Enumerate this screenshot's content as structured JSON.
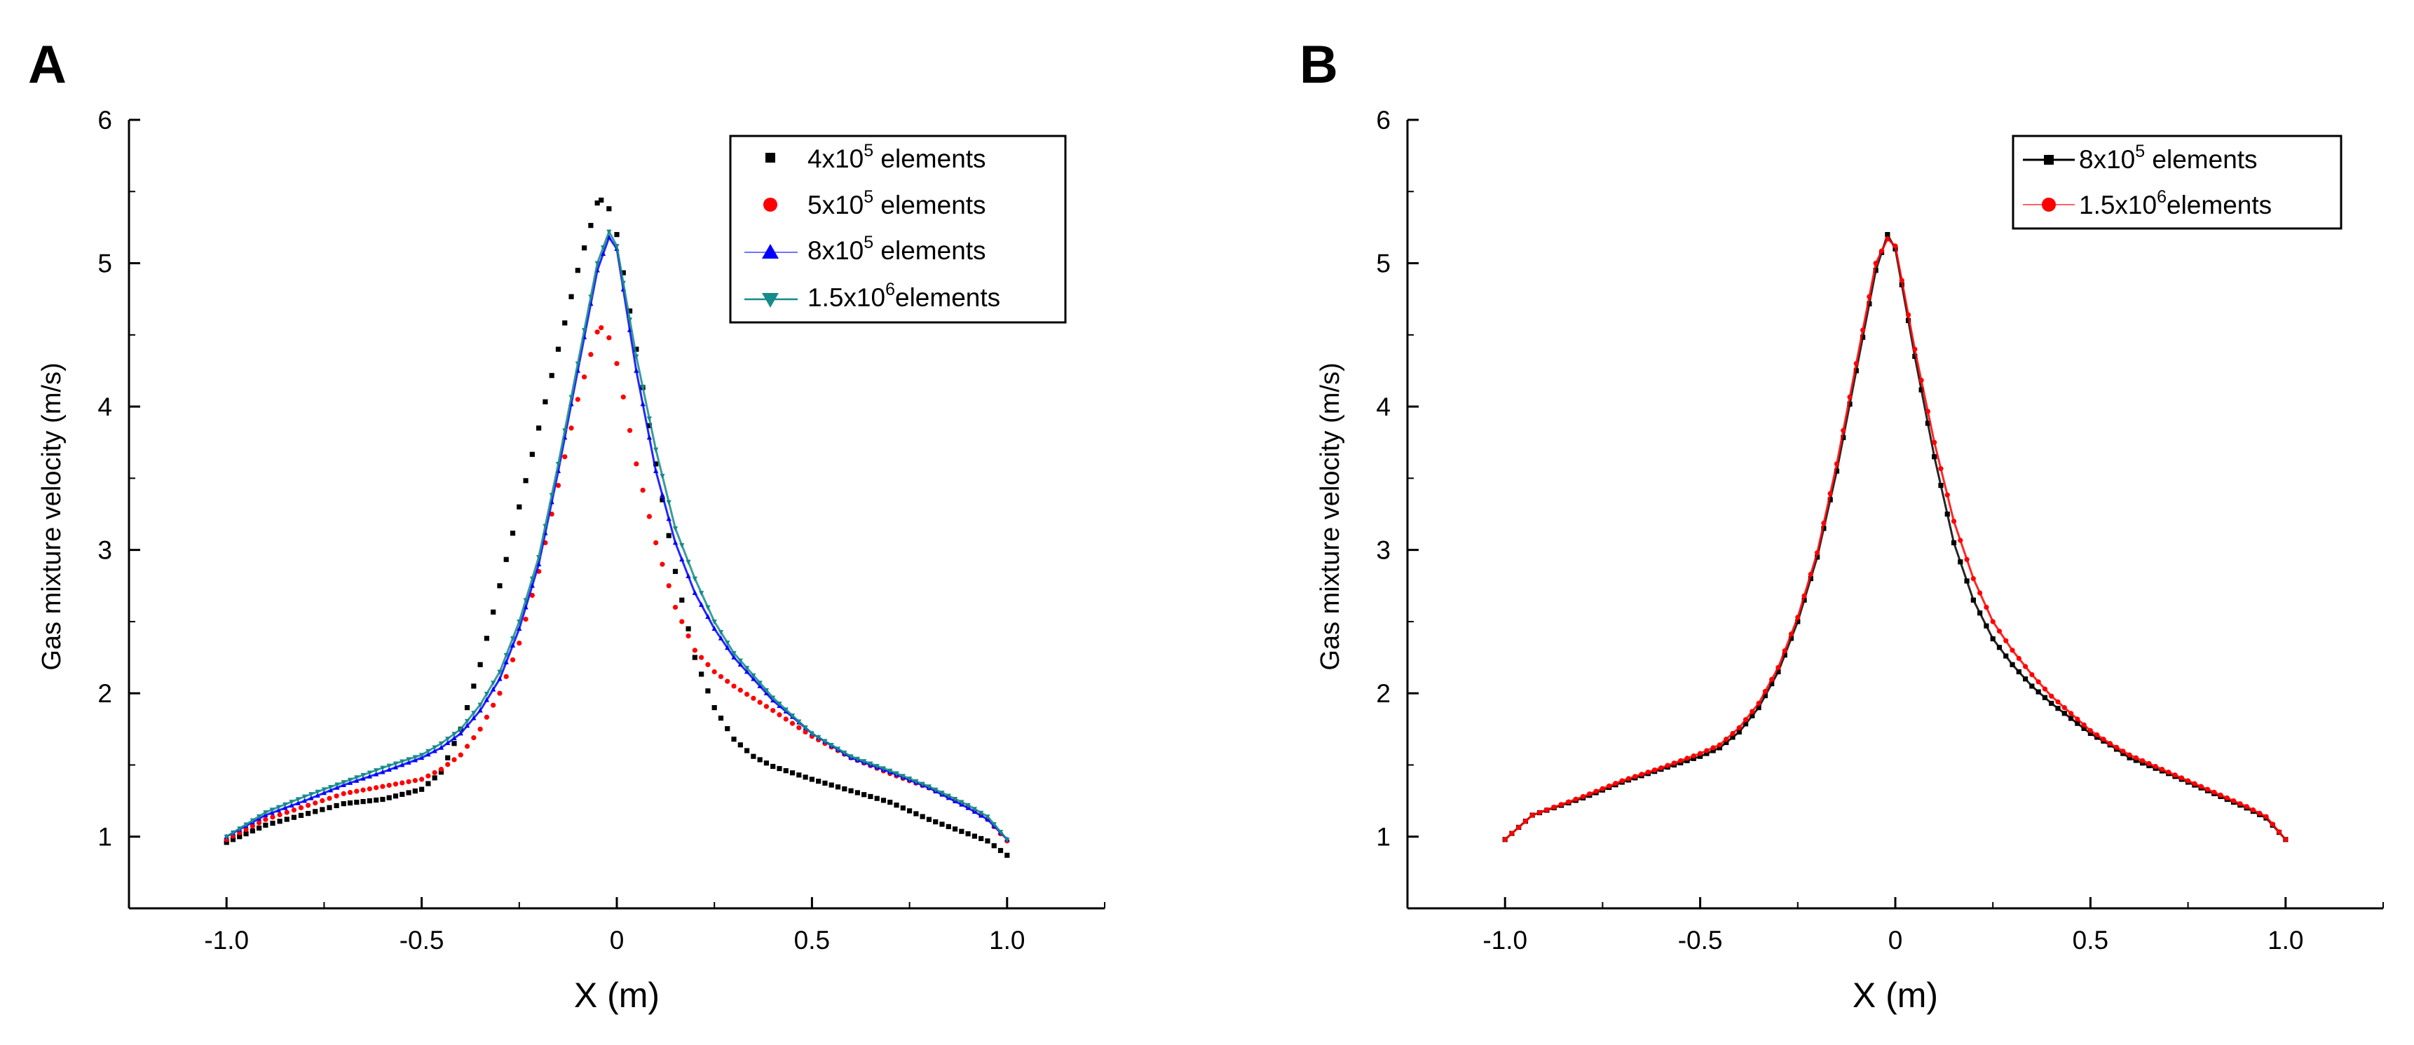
{
  "chart_data": [
    {
      "panel_label": "A",
      "type": "scatter",
      "xlabel": "X (m)",
      "ylabel": "Gas mixture velocity  (m/s)",
      "xlim": [
        -1.25,
        1.25
      ],
      "ylim": [
        0.5,
        6
      ],
      "xticks": [
        -1.0,
        -0.5,
        0,
        0.5,
        1.0
      ],
      "xtick_labels": [
        "-1.0",
        "-0.5",
        "0",
        "0.5",
        "1.0"
      ],
      "yticks": [
        1,
        2,
        3,
        4,
        5,
        6
      ],
      "ytick_labels": [
        "1",
        "2",
        "3",
        "4",
        "5",
        "6"
      ],
      "legend_position": "top-right",
      "legend_style": "markers-only-and-lines",
      "series": [
        {
          "name": "4x10^5 elements",
          "legend": {
            "base": "4x10",
            "exp": "5",
            "suffix": " elements"
          },
          "color": "#000000",
          "marker": "square",
          "line": false,
          "x": [
            -1.0,
            -0.9,
            -0.7,
            -0.6,
            -0.5,
            -0.45,
            -0.4,
            -0.35,
            -0.3,
            -0.25,
            -0.2,
            -0.15,
            -0.1,
            -0.05,
            -0.04,
            -0.02,
            0.0,
            0.05,
            0.1,
            0.15,
            0.2,
            0.25,
            0.3,
            0.35,
            0.4,
            0.5,
            0.6,
            0.7,
            0.8,
            0.9,
            0.95,
            1.0
          ],
          "y": [
            0.96,
            1.08,
            1.23,
            1.26,
            1.33,
            1.45,
            1.75,
            2.2,
            2.75,
            3.3,
            3.85,
            4.4,
            4.95,
            5.42,
            5.44,
            5.38,
            5.2,
            4.4,
            3.6,
            2.85,
            2.25,
            1.9,
            1.68,
            1.56,
            1.49,
            1.4,
            1.32,
            1.24,
            1.12,
            1.02,
            0.97,
            0.87
          ]
        },
        {
          "name": "5x10^5 elements",
          "legend": {
            "base": "5x10",
            "exp": "5",
            "suffix": " elements"
          },
          "color": "#ff0000",
          "marker": "circle",
          "line": false,
          "x": [
            -1.0,
            -0.9,
            -0.7,
            -0.6,
            -0.5,
            -0.45,
            -0.4,
            -0.35,
            -0.3,
            -0.25,
            -0.2,
            -0.15,
            -0.1,
            -0.05,
            -0.04,
            -0.02,
            0.0,
            0.05,
            0.1,
            0.15,
            0.2,
            0.25,
            0.3,
            0.4,
            0.5,
            0.6,
            0.7,
            0.8,
            0.9,
            0.95,
            1.0
          ],
          "y": [
            0.98,
            1.12,
            1.3,
            1.35,
            1.4,
            1.47,
            1.57,
            1.75,
            2.0,
            2.35,
            2.85,
            3.45,
            4.05,
            4.52,
            4.55,
            4.48,
            4.3,
            3.6,
            3.05,
            2.6,
            2.3,
            2.15,
            2.05,
            1.88,
            1.7,
            1.55,
            1.44,
            1.34,
            1.21,
            1.12,
            0.97
          ]
        },
        {
          "name": "8x10^5 elements",
          "legend": {
            "base": "8x10",
            "exp": "5",
            "suffix": " elements"
          },
          "color": "#0000ff",
          "marker": "triangle-up",
          "line": true,
          "x": [
            -1.0,
            -0.9,
            -0.8,
            -0.7,
            -0.6,
            -0.5,
            -0.45,
            -0.4,
            -0.35,
            -0.3,
            -0.25,
            -0.2,
            -0.15,
            -0.1,
            -0.05,
            -0.02,
            0.0,
            0.05,
            0.1,
            0.15,
            0.2,
            0.25,
            0.3,
            0.4,
            0.5,
            0.6,
            0.7,
            0.8,
            0.9,
            0.95,
            1.0
          ],
          "y": [
            1.0,
            1.15,
            1.25,
            1.36,
            1.45,
            1.55,
            1.62,
            1.72,
            1.88,
            2.1,
            2.45,
            2.9,
            3.55,
            4.25,
            4.95,
            5.18,
            5.1,
            4.25,
            3.55,
            3.05,
            2.7,
            2.45,
            2.25,
            1.95,
            1.72,
            1.55,
            1.45,
            1.34,
            1.2,
            1.12,
            0.98
          ]
        },
        {
          "name": "1.5x10^6 elements",
          "legend": {
            "base": "1.5x10",
            "exp": "6",
            "suffix": "elements"
          },
          "color": "#178a8a",
          "marker": "triangle-down",
          "line": true,
          "x": [
            -1.0,
            -0.9,
            -0.8,
            -0.7,
            -0.6,
            -0.5,
            -0.45,
            -0.4,
            -0.35,
            -0.3,
            -0.25,
            -0.2,
            -0.15,
            -0.1,
            -0.05,
            -0.02,
            0.0,
            0.05,
            0.1,
            0.15,
            0.2,
            0.25,
            0.3,
            0.4,
            0.5,
            0.6,
            0.7,
            0.8,
            0.9,
            0.95,
            1.0
          ],
          "y": [
            1.0,
            1.17,
            1.28,
            1.38,
            1.48,
            1.57,
            1.65,
            1.75,
            1.92,
            2.15,
            2.5,
            2.95,
            3.6,
            4.3,
            5.0,
            5.22,
            5.12,
            4.35,
            3.7,
            3.15,
            2.8,
            2.5,
            2.28,
            1.97,
            1.72,
            1.56,
            1.46,
            1.35,
            1.22,
            1.14,
            0.98
          ]
        }
      ]
    },
    {
      "panel_label": "B",
      "type": "line",
      "xlabel": "X (m)",
      "ylabel": "Gas mixture velocity  (m/s)",
      "xlim": [
        -1.25,
        1.25
      ],
      "ylim": [
        0.5,
        6
      ],
      "xticks": [
        -1.0,
        -0.5,
        0,
        0.5,
        1.0
      ],
      "xtick_labels": [
        "-1.0",
        "-0.5",
        "0",
        "0.5",
        "1.0"
      ],
      "yticks": [
        1,
        2,
        3,
        4,
        5,
        6
      ],
      "ytick_labels": [
        "1",
        "2",
        "3",
        "4",
        "5",
        "6"
      ],
      "legend_position": "top-right",
      "series": [
        {
          "name": "8x10^5 elements",
          "legend": {
            "base": "8x10",
            "exp": "5",
            "suffix": " elements"
          },
          "color": "#000000",
          "marker": "square",
          "line": true,
          "x": [
            -1.0,
            -0.93,
            -0.8,
            -0.7,
            -0.6,
            -0.5,
            -0.45,
            -0.4,
            -0.35,
            -0.3,
            -0.25,
            -0.2,
            -0.15,
            -0.1,
            -0.05,
            -0.02,
            0.0,
            0.05,
            0.1,
            0.15,
            0.2,
            0.25,
            0.3,
            0.35,
            0.4,
            0.5,
            0.55,
            0.6,
            0.7,
            0.8,
            0.9,
            0.95,
            1.0
          ],
          "y": [
            0.98,
            1.15,
            1.27,
            1.38,
            1.47,
            1.56,
            1.62,
            1.73,
            1.9,
            2.15,
            2.5,
            2.95,
            3.55,
            4.25,
            4.95,
            5.2,
            5.1,
            4.35,
            3.65,
            3.05,
            2.65,
            2.38,
            2.2,
            2.05,
            1.93,
            1.72,
            1.64,
            1.55,
            1.44,
            1.32,
            1.2,
            1.13,
            0.98
          ]
        },
        {
          "name": "1.5x10^6 elements",
          "legend": {
            "base": "1.5x10",
            "exp": "6",
            "suffix": "elements"
          },
          "color": "#ff0000",
          "marker": "circle",
          "line": true,
          "x": [
            -1.0,
            -0.93,
            -0.8,
            -0.7,
            -0.6,
            -0.5,
            -0.45,
            -0.4,
            -0.35,
            -0.3,
            -0.25,
            -0.2,
            -0.15,
            -0.1,
            -0.05,
            -0.02,
            0.0,
            0.05,
            0.1,
            0.15,
            0.2,
            0.25,
            0.3,
            0.35,
            0.4,
            0.5,
            0.55,
            0.6,
            0.7,
            0.8,
            0.9,
            0.95,
            1.0
          ],
          "y": [
            0.98,
            1.15,
            1.28,
            1.39,
            1.48,
            1.58,
            1.64,
            1.76,
            1.93,
            2.18,
            2.53,
            2.98,
            3.6,
            4.3,
            5.0,
            5.17,
            5.12,
            4.4,
            3.75,
            3.2,
            2.8,
            2.5,
            2.3,
            2.13,
            1.98,
            1.74,
            1.65,
            1.57,
            1.45,
            1.33,
            1.21,
            1.14,
            0.98
          ]
        }
      ]
    }
  ]
}
